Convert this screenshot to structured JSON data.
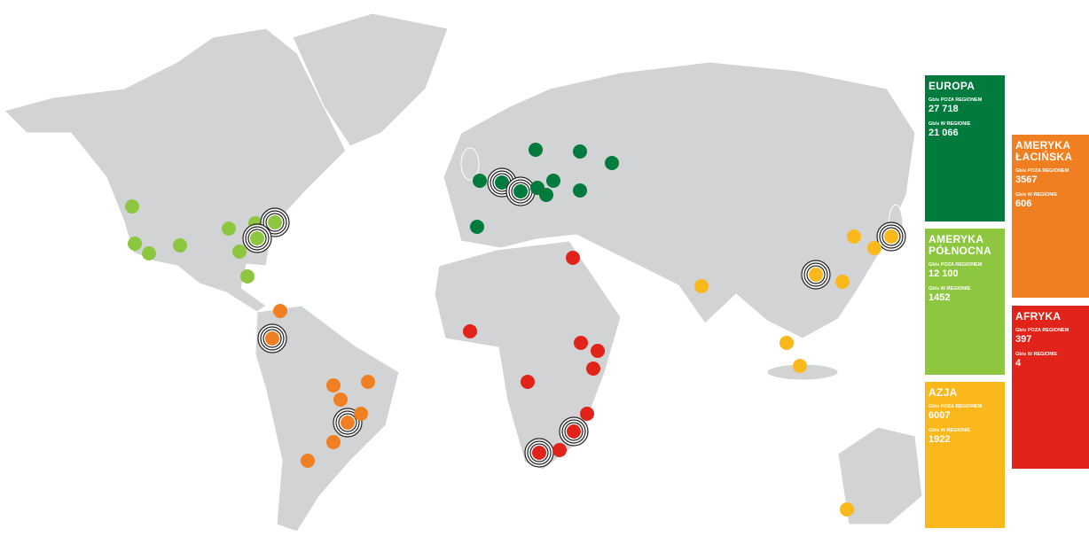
{
  "regions": [
    {
      "name": "EUROPA",
      "color": "#007a3d",
      "out_label": "Gb/s POZA REGIONEM",
      "out_value": "27 718",
      "in_label": "Gb/s W REGIONIE",
      "in_value": "21 066"
    },
    {
      "name": "AMERYKA PÓŁNOCNA",
      "color": "#8dc63f",
      "out_label": "Gb/s POZA REGIONEM",
      "out_value": "12 100",
      "in_label": "Gb/s W REGIONIE",
      "in_value": "1452"
    },
    {
      "name": "AZJA",
      "color": "#fbb81a",
      "out_label": "Gb/s POZA REGIONEM",
      "out_value": "6007",
      "in_label": "Gb/s W REGIONIE",
      "in_value": "1922"
    },
    {
      "name": "AMERYKA ŁACIŃSKA",
      "color": "#f07f22",
      "out_label": "Gb/s POZA REGIONEM",
      "out_value": "3567",
      "in_label": "Gb/s W REGIONIE",
      "in_value": "606"
    },
    {
      "name": "AFRYKA",
      "color": "#e2231a",
      "out_label": "Gb/s POZA REGIONEM",
      "out_value": "397",
      "in_label": "Gb/s W REGIONIE",
      "in_value": "4"
    }
  ]
}
